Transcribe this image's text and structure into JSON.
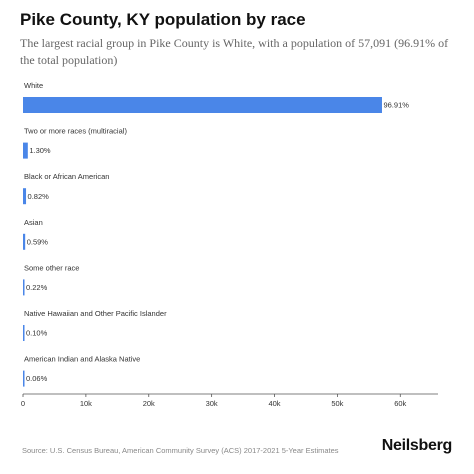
{
  "header": {
    "title": "Pike County, KY population by race",
    "subtitle": "The largest racial group in Pike County is White, with a population of 57,091 (96.91% of the total population)"
  },
  "chart_data": {
    "type": "bar",
    "orientation": "horizontal",
    "categories": [
      "White",
      "Two or more races (multiracial)",
      "Black or African American",
      "Asian",
      "Some other race",
      "Native Hawaiian and Other Pacific Islander",
      "American Indian and Alaska Native"
    ],
    "values": [
      57091,
      766,
      483,
      348,
      130,
      59,
      35
    ],
    "data_labels": [
      "96.91%",
      "1.30%",
      "0.82%",
      "0.59%",
      "0.22%",
      "0.10%",
      "0.06%"
    ],
    "xlim": [
      0,
      66000
    ],
    "x_ticks": [
      0,
      10000,
      20000,
      30000,
      40000,
      50000,
      60000
    ],
    "x_tick_labels": [
      "0",
      "10k",
      "20k",
      "30k",
      "40k",
      "50k",
      "60k"
    ],
    "bar_color": "#4a86e8",
    "grid": false
  },
  "footer": {
    "source": "Source: U.S. Census Bureau, American Community Survey (ACS) 2017-2021 5-Year Estimates",
    "brand": "Neilsberg"
  }
}
